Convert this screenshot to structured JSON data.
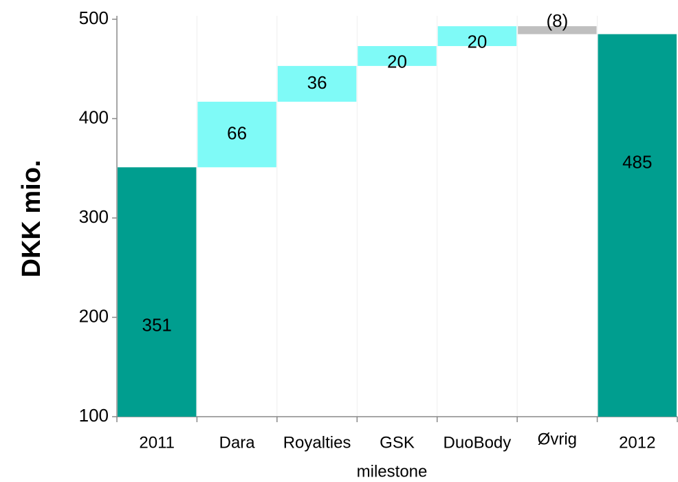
{
  "chart_data": {
    "type": "waterfall",
    "categories": [
      "2011",
      "Dara",
      "Royalties",
      "GSK",
      "DuoBody",
      "Øvrig",
      "2012"
    ],
    "values": [
      351,
      66,
      36,
      20,
      20,
      -8,
      485
    ],
    "value_labels": [
      "351",
      "66",
      "36",
      "20",
      "20",
      "(8)",
      "485"
    ],
    "colors": [
      "#009e8f",
      "#7ffaf7",
      "#7ffaf7",
      "#7ffaf7",
      "#7ffaf7",
      "#bfbfbf",
      "#009e8f"
    ],
    "ylabel": "DKK mio.",
    "xlabel": "milestone",
    "ylim": [
      100,
      500
    ],
    "yticks": [
      100,
      200,
      300,
      400,
      500
    ]
  }
}
